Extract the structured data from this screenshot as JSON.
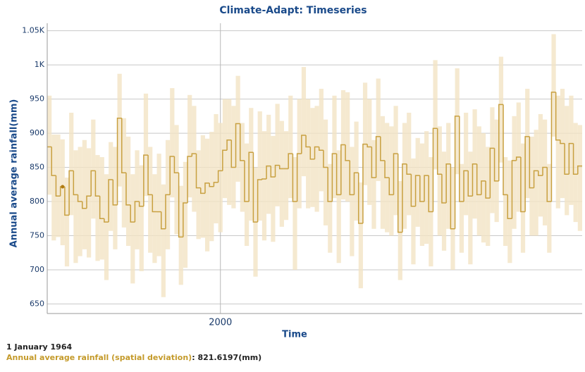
{
  "chart_data": {
    "type": "step-range",
    "title": "Climate-Adapt: Timeseries",
    "x_label": "Time",
    "y_label": "Annual average rainfall(mm)",
    "xlim": [
      1960.5,
      2082.5
    ],
    "xticks": [
      2000
    ],
    "ylim": [
      636,
      1061
    ],
    "yticks": [
      650,
      700,
      750,
      800,
      850,
      900,
      950,
      {
        "value": 1000,
        "label": "1K"
      },
      {
        "value": 1050,
        "label": "1.05K"
      }
    ],
    "grid": true,
    "x": [
      1961,
      1962,
      1963,
      1964,
      1965,
      1966,
      1967,
      1968,
      1969,
      1970,
      1971,
      1972,
      1973,
      1974,
      1975,
      1976,
      1977,
      1978,
      1979,
      1980,
      1981,
      1982,
      1983,
      1984,
      1985,
      1986,
      1987,
      1988,
      1989,
      1990,
      1991,
      1992,
      1993,
      1994,
      1995,
      1996,
      1997,
      1998,
      1999,
      2000,
      2001,
      2002,
      2003,
      2004,
      2005,
      2006,
      2007,
      2008,
      2009,
      2010,
      2011,
      2012,
      2013,
      2014,
      2015,
      2016,
      2017,
      2018,
      2019,
      2020,
      2021,
      2022,
      2023,
      2024,
      2025,
      2026,
      2027,
      2028,
      2029,
      2030,
      2031,
      2032,
      2033,
      2034,
      2035,
      2036,
      2037,
      2038,
      2039,
      2040,
      2041,
      2042,
      2043,
      2044,
      2045,
      2046,
      2047,
      2048,
      2049,
      2050,
      2051,
      2052,
      2053,
      2054,
      2055,
      2056,
      2057,
      2058,
      2059,
      2060,
      2061,
      2062,
      2063,
      2064,
      2065,
      2066,
      2067,
      2068,
      2069,
      2070,
      2071,
      2072,
      2073,
      2074,
      2075,
      2076,
      2077,
      2078,
      2079,
      2080,
      2081,
      2082
    ],
    "band": {
      "color": "#f3e4c4",
      "low": [
        810,
        743,
        748,
        736,
        705,
        780,
        710,
        720,
        730,
        718,
        775,
        713,
        715,
        685,
        757,
        730,
        822,
        762,
        735,
        680,
        730,
        698,
        808,
        725,
        710,
        720,
        660,
        730,
        806,
        752,
        678,
        703,
        806,
        785,
        745,
        747,
        727,
        742,
        768,
        755,
        805,
        795,
        790,
        829,
        785,
        735,
        772,
        690,
        772,
        743,
        782,
        741,
        793,
        763,
        773,
        805,
        700,
        790,
        837,
        790,
        792,
        785,
        815,
        765,
        725,
        805,
        710,
        803,
        800,
        720,
        772,
        673,
        824,
        795,
        760,
        830,
        760,
        755,
        750,
        780,
        685,
        760,
        780,
        708,
        763,
        735,
        738,
        705,
        847,
        750,
        728,
        760,
        700,
        840,
        725,
        780,
        708,
        775,
        750,
        740,
        735,
        783,
        770,
        857,
        735,
        710,
        760,
        785,
        725,
        805,
        750,
        750,
        778,
        765,
        725,
        895,
        790,
        805,
        780,
        795,
        770,
        757
      ],
      "high": [
        955,
        898,
        898,
        891,
        835,
        930,
        875,
        880,
        890,
        878,
        920,
        868,
        865,
        840,
        887,
        880,
        987,
        922,
        895,
        840,
        875,
        853,
        958,
        880,
        840,
        870,
        825,
        890,
        966,
        912,
        823,
        858,
        956,
        940,
        875,
        897,
        892,
        902,
        928,
        915,
        950,
        950,
        940,
        984,
        915,
        885,
        937,
        850,
        932,
        903,
        927,
        896,
        943,
        918,
        903,
        955,
        865,
        950,
        997,
        950,
        937,
        940,
        965,
        920,
        855,
        955,
        875,
        963,
        960,
        880,
        917,
        828,
        974,
        950,
        890,
        980,
        925,
        915,
        910,
        940,
        830,
        915,
        930,
        863,
        893,
        885,
        903,
        865,
        1007,
        910,
        873,
        915,
        850,
        995,
        855,
        930,
        873,
        935,
        910,
        900,
        880,
        938,
        920,
        1012,
        865,
        860,
        925,
        945,
        885,
        965,
        895,
        905,
        928,
        920,
        855,
        1045,
        955,
        965,
        940,
        955,
        915,
        912
      ]
    },
    "series": [
      {
        "name": "Annual average rainfall (spatial deviation)",
        "color": "#c8a040",
        "values": [
          880,
          838,
          808,
          821.6197,
          780,
          845,
          810,
          800,
          790,
          808,
          845,
          808,
          775,
          770,
          832,
          795,
          922,
          842,
          795,
          770,
          800,
          793,
          868,
          810,
          785,
          785,
          760,
          810,
          866,
          842,
          748,
          798,
          866,
          870,
          820,
          812,
          827,
          822,
          828,
          845,
          875,
          890,
          850,
          914,
          860,
          800,
          872,
          770,
          832,
          833,
          852,
          836,
          853,
          848,
          848,
          870,
          800,
          870,
          897,
          880,
          862,
          880,
          875,
          850,
          800,
          870,
          810,
          883,
          860,
          810,
          842,
          768,
          884,
          880,
          835,
          895,
          860,
          835,
          810,
          870,
          755,
          855,
          840,
          793,
          838,
          800,
          838,
          785,
          907,
          840,
          798,
          855,
          760,
          925,
          800,
          845,
          808,
          855,
          810,
          830,
          805,
          878,
          830,
          942,
          810,
          775,
          860,
          865,
          785,
          895,
          820,
          845,
          838,
          850,
          800,
          960,
          890,
          885,
          840,
          885,
          840,
          852
        ]
      }
    ],
    "tooltip": {
      "date": "1 January 1964",
      "index": 3,
      "value_label": "821.6197(mm)"
    }
  }
}
